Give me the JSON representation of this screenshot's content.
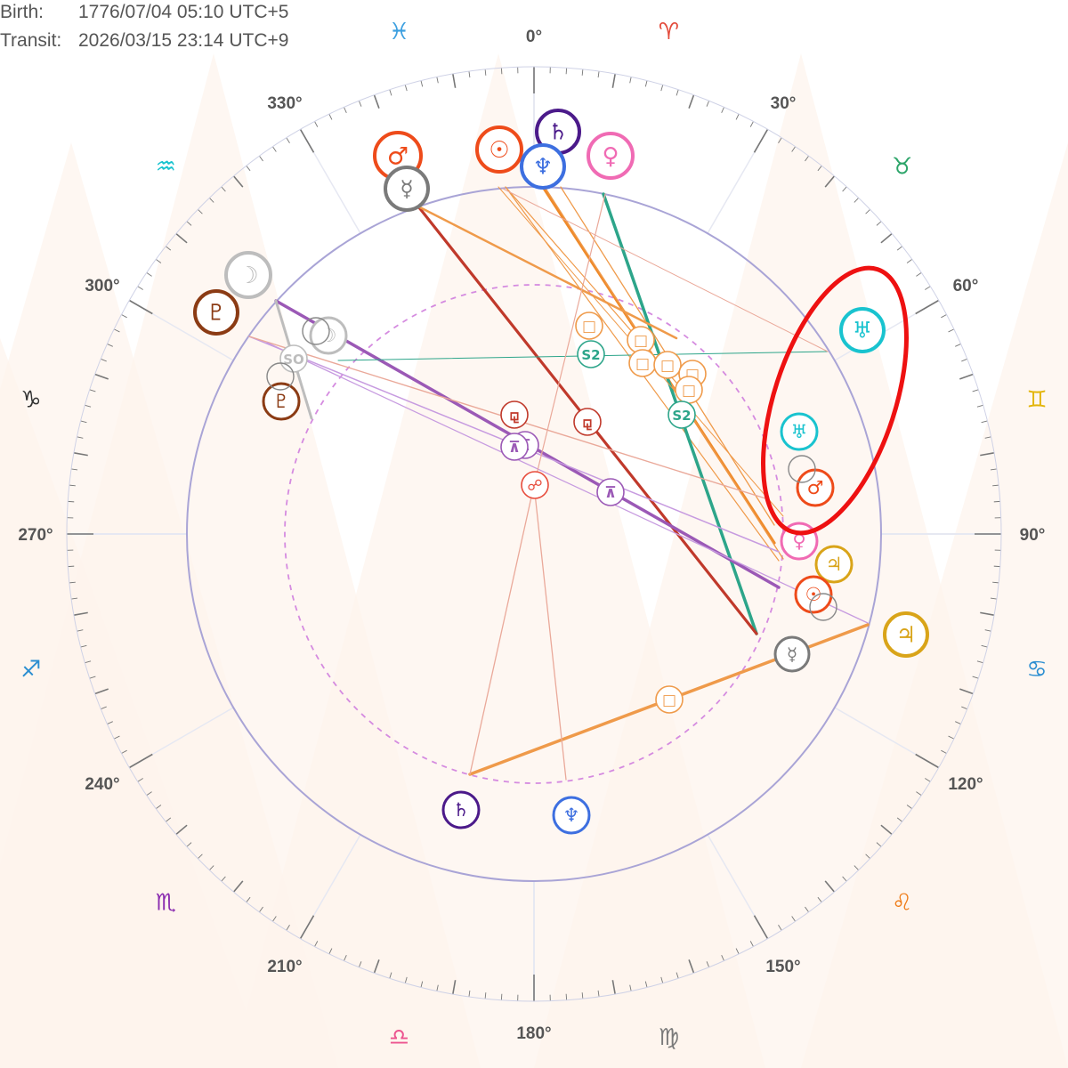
{
  "header": {
    "birth_label": "Birth:",
    "birth_value": "1776/07/04 05:10 UTC+5",
    "transit_label": "Transit:",
    "transit_value": "2026/03/15 23:14 UTC+9"
  },
  "colors": {
    "ring": "#a9a4d6",
    "tick": "#777777",
    "sun": "#ee4b1a",
    "moon": "#bdbdbd",
    "mercury": "#7a7a7a",
    "venus": "#f06bb4",
    "mars": "#ee4b1a",
    "jupiter": "#d9a419",
    "saturn": "#4b1a8a",
    "uranus": "#19c3cf",
    "neptune": "#3d6fe0",
    "pluto": "#8b3b14",
    "highlight": "#ee1111"
  },
  "degree_labels": [
    "0°",
    "30°",
    "60°",
    "90°",
    "120°",
    "150°",
    "180°",
    "210°",
    "240°",
    "270°",
    "300°",
    "330°"
  ],
  "zodiac": [
    {
      "name": "aries-glyph",
      "glyph": "♈",
      "color": "#e34b3b"
    },
    {
      "name": "taurus-glyph",
      "glyph": "♉",
      "color": "#2da56a"
    },
    {
      "name": "gemini-glyph",
      "glyph": "♊",
      "color": "#e3b50c"
    },
    {
      "name": "cancer-glyph",
      "glyph": "♋",
      "color": "#2b8ed1"
    },
    {
      "name": "leo-glyph",
      "glyph": "♌",
      "color": "#ef7d1a"
    },
    {
      "name": "virgo-glyph",
      "glyph": "♍",
      "color": "#7a7a7a"
    },
    {
      "name": "libra-glyph",
      "glyph": "♎",
      "color": "#ec5590"
    },
    {
      "name": "scorpio-glyph",
      "glyph": "♏",
      "color": "#8b2db0"
    },
    {
      "name": "sagittarius-glyph",
      "glyph": "♐",
      "color": "#2b8ed1"
    },
    {
      "name": "capricorn-glyph",
      "glyph": "♑",
      "color": "#333333"
    },
    {
      "name": "aquarius-glyph",
      "glyph": "♒",
      "color": "#19c3cf"
    },
    {
      "name": "pisces-glyph",
      "glyph": "♓",
      "color": "#3da0e0"
    }
  ],
  "planets": [
    {
      "name": "transit-mars",
      "glyph": "♂",
      "color": "#ee4b1a",
      "ring": "outer"
    },
    {
      "name": "transit-sun",
      "glyph": "☉",
      "color": "#ee4b1a",
      "ring": "outer"
    },
    {
      "name": "transit-saturn",
      "glyph": "♄",
      "color": "#4b1a8a",
      "ring": "outer"
    },
    {
      "name": "transit-venus",
      "glyph": "♀",
      "color": "#f06bb4",
      "ring": "outer"
    },
    {
      "name": "transit-mercury",
      "glyph": "☿",
      "color": "#7a7a7a",
      "ring": "outer"
    },
    {
      "name": "transit-neptune",
      "glyph": "♆",
      "color": "#3d6fe0",
      "ring": "outer"
    },
    {
      "name": "transit-moon",
      "glyph": "☽",
      "color": "#bdbdbd",
      "ring": "outer"
    },
    {
      "name": "transit-pluto",
      "glyph": "♇",
      "color": "#8b3b14",
      "ring": "outer"
    },
    {
      "name": "transit-uranus",
      "glyph": "♅",
      "color": "#19c3cf",
      "ring": "outer"
    },
    {
      "name": "transit-jupiter",
      "glyph": "♃",
      "color": "#d9a419",
      "ring": "outer"
    },
    {
      "name": "natal-moon",
      "glyph": "☽",
      "color": "#bdbdbd",
      "ring": "inner"
    },
    {
      "name": "natal-pluto",
      "glyph": "♇",
      "color": "#8b3b14",
      "ring": "inner"
    },
    {
      "name": "natal-uranus",
      "glyph": "♅",
      "color": "#19c3cf",
      "ring": "inner"
    },
    {
      "name": "natal-mars",
      "glyph": "♂",
      "color": "#ee4b1a",
      "ring": "inner"
    },
    {
      "name": "natal-venus",
      "glyph": "♀",
      "color": "#f06bb4",
      "ring": "inner"
    },
    {
      "name": "natal-jupiter",
      "glyph": "♃",
      "color": "#d9a419",
      "ring": "inner"
    },
    {
      "name": "natal-sun",
      "glyph": "☉",
      "color": "#ee4b1a",
      "ring": "inner"
    },
    {
      "name": "natal-mercury",
      "glyph": "☿",
      "color": "#7a7a7a",
      "ring": "inner"
    },
    {
      "name": "natal-saturn",
      "glyph": "♄",
      "color": "#4b1a8a",
      "ring": "inner"
    },
    {
      "name": "natal-neptune",
      "glyph": "♆",
      "color": "#3d6fe0",
      "ring": "inner"
    }
  ],
  "aspect_markers": [
    {
      "name": "square-marker",
      "glyph": "□",
      "color": "#ef9a4a"
    },
    {
      "name": "semi-square-s2-marker",
      "glyph": "S2",
      "color": "#2da58a"
    },
    {
      "name": "quincunx-marker",
      "glyph": "⊼",
      "color": "#9b59b6"
    },
    {
      "name": "sesquiquadrate-marker",
      "glyph": "⚼",
      "color": "#c0392b"
    },
    {
      "name": "opposition-marker",
      "glyph": "☍",
      "color": "#e74c3c"
    },
    {
      "name": "semisextile-marker",
      "glyph": "SO",
      "color": "#bdbdbd"
    }
  ]
}
